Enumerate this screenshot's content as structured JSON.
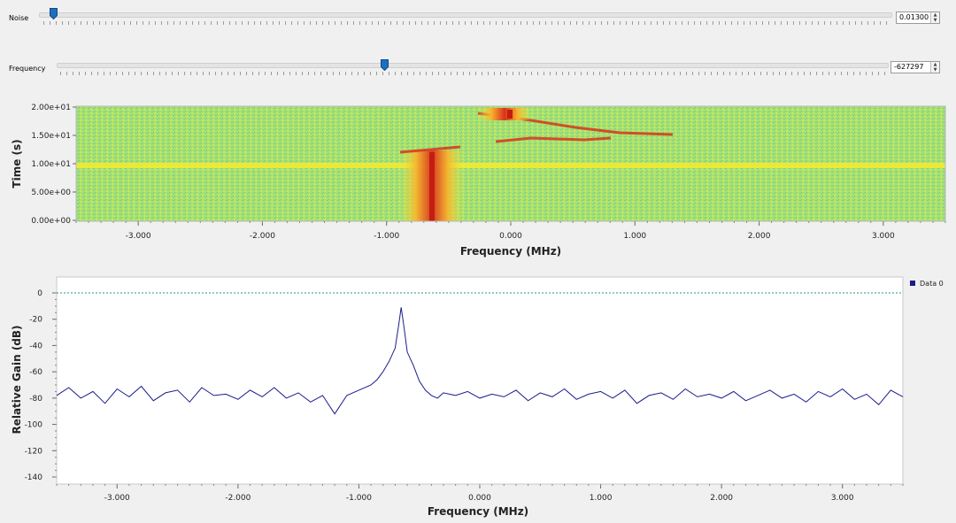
{
  "noise": {
    "label": "Noise",
    "value": "0.01300",
    "fraction": 0.017
  },
  "frequency": {
    "label": "Frequency",
    "value": "-627297",
    "fraction": 0.395
  },
  "waterfall": {
    "ylabel": "Time (s)",
    "xlabel": "Frequency (MHz)",
    "yticks": [
      "0.00e+00",
      "5.00e+00",
      "1.00e+01",
      "1.50e+01",
      "2.00e+01"
    ],
    "xticks": [
      "-3.000",
      "-2.000",
      "-1.000",
      "0.000",
      "1.000",
      "2.000",
      "3.000"
    ],
    "colors": {
      "low": "#9ee06e",
      "mid": "#f5ea3c",
      "high": "#d42a1a"
    }
  },
  "chart_data": {
    "type": "line",
    "xlabel": "Frequency (MHz)",
    "ylabel": "Relative Gain (dB)",
    "xlim": [
      -3.5,
      3.5
    ],
    "ylim": [
      -140,
      0
    ],
    "xticks": [
      "-3.000",
      "-2.000",
      "-1.000",
      "0.000",
      "1.000",
      "2.000",
      "3.000"
    ],
    "yticks": [
      "0",
      "-20",
      "-40",
      "-60",
      "-80",
      "-100",
      "-120",
      "-140"
    ],
    "legend": {
      "placement": "top-right",
      "entries": [
        "Data 0"
      ]
    },
    "reference_line": {
      "y": 0,
      "color": "#2f8f8f"
    },
    "series": [
      {
        "name": "Data 0",
        "color": "#1b1b8c",
        "x": [
          -3.5,
          -3.4,
          -3.3,
          -3.2,
          -3.1,
          -3.0,
          -2.9,
          -2.8,
          -2.7,
          -2.6,
          -2.5,
          -2.4,
          -2.3,
          -2.2,
          -2.1,
          -2.0,
          -1.9,
          -1.8,
          -1.7,
          -1.6,
          -1.5,
          -1.4,
          -1.3,
          -1.2,
          -1.1,
          -1.0,
          -0.9,
          -0.85,
          -0.8,
          -0.75,
          -0.7,
          -0.67,
          -0.65,
          -0.63,
          -0.6,
          -0.55,
          -0.5,
          -0.45,
          -0.4,
          -0.35,
          -0.3,
          -0.2,
          -0.1,
          0.0,
          0.1,
          0.2,
          0.3,
          0.4,
          0.5,
          0.6,
          0.7,
          0.8,
          0.9,
          1.0,
          1.1,
          1.2,
          1.3,
          1.4,
          1.5,
          1.6,
          1.7,
          1.8,
          1.9,
          2.0,
          2.1,
          2.2,
          2.3,
          2.4,
          2.5,
          2.6,
          2.7,
          2.8,
          2.9,
          3.0,
          3.1,
          3.2,
          3.3,
          3.4,
          3.5
        ],
        "y": [
          -78,
          -72,
          -80,
          -75,
          -84,
          -73,
          -79,
          -71,
          -82,
          -76,
          -74,
          -83,
          -72,
          -78,
          -77,
          -81,
          -74,
          -79,
          -72,
          -80,
          -76,
          -83,
          -78,
          -92,
          -78,
          -74,
          -70,
          -66,
          -60,
          -52,
          -42,
          -24,
          -11,
          -24,
          -45,
          -55,
          -67,
          -74,
          -78,
          -80,
          -76,
          -78,
          -75,
          -80,
          -77,
          -79,
          -74,
          -82,
          -76,
          -79,
          -73,
          -81,
          -77,
          -75,
          -80,
          -74,
          -84,
          -78,
          -76,
          -81,
          -73,
          -79,
          -77,
          -80,
          -75,
          -82,
          -78,
          -74,
          -80,
          -77,
          -83,
          -75,
          -79,
          -73,
          -81,
          -77,
          -85,
          -74,
          -79
        ]
      }
    ]
  }
}
